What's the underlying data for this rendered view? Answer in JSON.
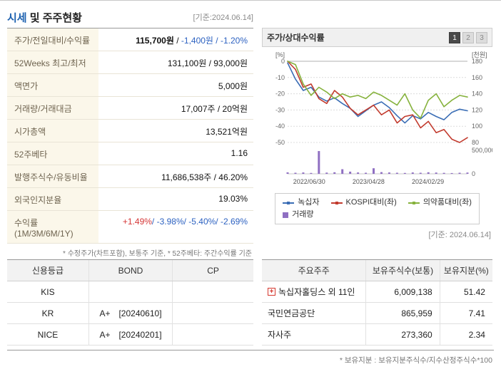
{
  "page": {
    "top_basis": "[기준:2024.06.14]",
    "mid_basis": "[기준: 2024.06.14]"
  },
  "header": {
    "title_blue": "시세",
    "title_rest": " 및 주주현황"
  },
  "info_table": {
    "rows": [
      {
        "label": "주가/전일대비/수익률",
        "price": "115,700원",
        "sep": " / ",
        "change": "-1,400원 / -1.20%"
      },
      {
        "label": "52Weeks 최고/최저",
        "value": "131,100원 / 93,000원"
      },
      {
        "label": "액면가",
        "value": "5,000원"
      },
      {
        "label": "거래량/거래대금",
        "value": "17,007주 / 20억원"
      },
      {
        "label": "시가총액",
        "value": "13,521억원"
      },
      {
        "label": "52주베타",
        "value": "1.16"
      },
      {
        "label": "발행주식수/유동비율",
        "value": "11,686,538주 / 46.20%"
      },
      {
        "label": "외국인지분율",
        "value": "19.03%"
      },
      {
        "label": "수익률 (1M/3M/6M/1Y)",
        "up": "+1.49%",
        "down": "/ -3.98%/ -5.40%/ -2.69%"
      }
    ],
    "footnote": "* 수정주가(차트포함), 보통주 기준, * 52주베타: 주간수익률 기준"
  },
  "chart_header": {
    "title": "주가/상대수익률",
    "buttons": [
      "1",
      "2",
      "3"
    ],
    "active_index": 0
  },
  "chart_data": {
    "type": "line",
    "title": "주가/상대수익률",
    "x_labels": [
      "2022/06/30",
      "2023/04/28",
      "2024/02/29"
    ],
    "left_axis": {
      "label": "[%]",
      "min": -50,
      "max": 0,
      "ticks": [
        0,
        -10,
        -20,
        -30,
        -40,
        -50
      ]
    },
    "right_axis": {
      "label": "[천원]",
      "min": 80,
      "max": 180,
      "ticks": [
        180,
        160,
        140,
        120,
        100,
        80
      ]
    },
    "volume_axis": {
      "max": 500000,
      "tick_labels": [
        "500,000",
        "0"
      ]
    },
    "series": [
      {
        "name": "녹십자",
        "axis": "right",
        "color": "#3a6db5",
        "values": [
          178,
          158,
          144,
          148,
          136,
          131,
          135,
          128,
          122,
          112,
          119,
          126,
          130,
          123,
          113,
          104,
          113,
          109,
          117,
          112,
          108,
          117,
          121,
          119
        ]
      },
      {
        "name": "KOSPI대비(좌)",
        "axis": "left",
        "color": "#c23b2e",
        "values": [
          0,
          -5,
          -16,
          -14,
          -23,
          -26,
          -18,
          -22,
          -29,
          -33,
          -30,
          -27,
          -33,
          -30,
          -38,
          -34,
          -33,
          -41,
          -37,
          -44,
          -42,
          -48,
          -50,
          -47
        ]
      },
      {
        "name": "의약품대비(좌)",
        "axis": "left",
        "color": "#86b23d",
        "values": [
          0,
          -2,
          -14,
          -21,
          -16,
          -19,
          -23,
          -20,
          -22,
          -21,
          -23,
          -19,
          -21,
          -24,
          -27,
          -20,
          -30,
          -35,
          -24,
          -20,
          -28,
          -24,
          -21,
          -22
        ]
      }
    ],
    "volume": {
      "name": "거래량",
      "color": "#8f6fc2",
      "values": [
        30000,
        22000,
        28000,
        18000,
        470000,
        25000,
        32000,
        95000,
        45000,
        28000,
        22000,
        115000,
        35000,
        28000,
        22000,
        18000,
        28000,
        22000,
        32000,
        26000,
        20000,
        16000,
        22000,
        26000
      ]
    }
  },
  "legend": {
    "items": [
      {
        "label": "녹십자",
        "color": "#3a6db5"
      },
      {
        "label": "KOSPI대비(좌)",
        "color": "#c23b2e"
      },
      {
        "label": "의약품대비(좌)",
        "color": "#86b23d"
      }
    ],
    "volume_label": "거래량",
    "volume_color": "#8f6fc2"
  },
  "credit_table": {
    "headers": [
      "신용등급",
      "BOND",
      "CP"
    ],
    "rows": [
      {
        "agency": "KIS",
        "bond_grade": "",
        "bond_date": "",
        "cp": ""
      },
      {
        "agency": "KR",
        "bond_grade": "A+",
        "bond_date": "[20240610]",
        "cp": ""
      },
      {
        "agency": "NICE",
        "bond_grade": "A+",
        "bond_date": "[20240201]",
        "cp": ""
      }
    ]
  },
  "holders_table": {
    "headers": [
      "주요주주",
      "보유주식수(보통)",
      "보유지분(%)"
    ],
    "rows": [
      {
        "icon": "+",
        "name": "녹십자홀딩스 외 11인",
        "shares": "6,009,138",
        "ratio": "51.42"
      },
      {
        "icon": "",
        "name": "국민연금공단",
        "shares": "865,959",
        "ratio": "7.41"
      },
      {
        "icon": "",
        "name": "자사주",
        "shares": "273,360",
        "ratio": "2.34"
      }
    ],
    "footnote": "* 보유지분 : 보유지분주식수/지수산정주식수*100"
  }
}
